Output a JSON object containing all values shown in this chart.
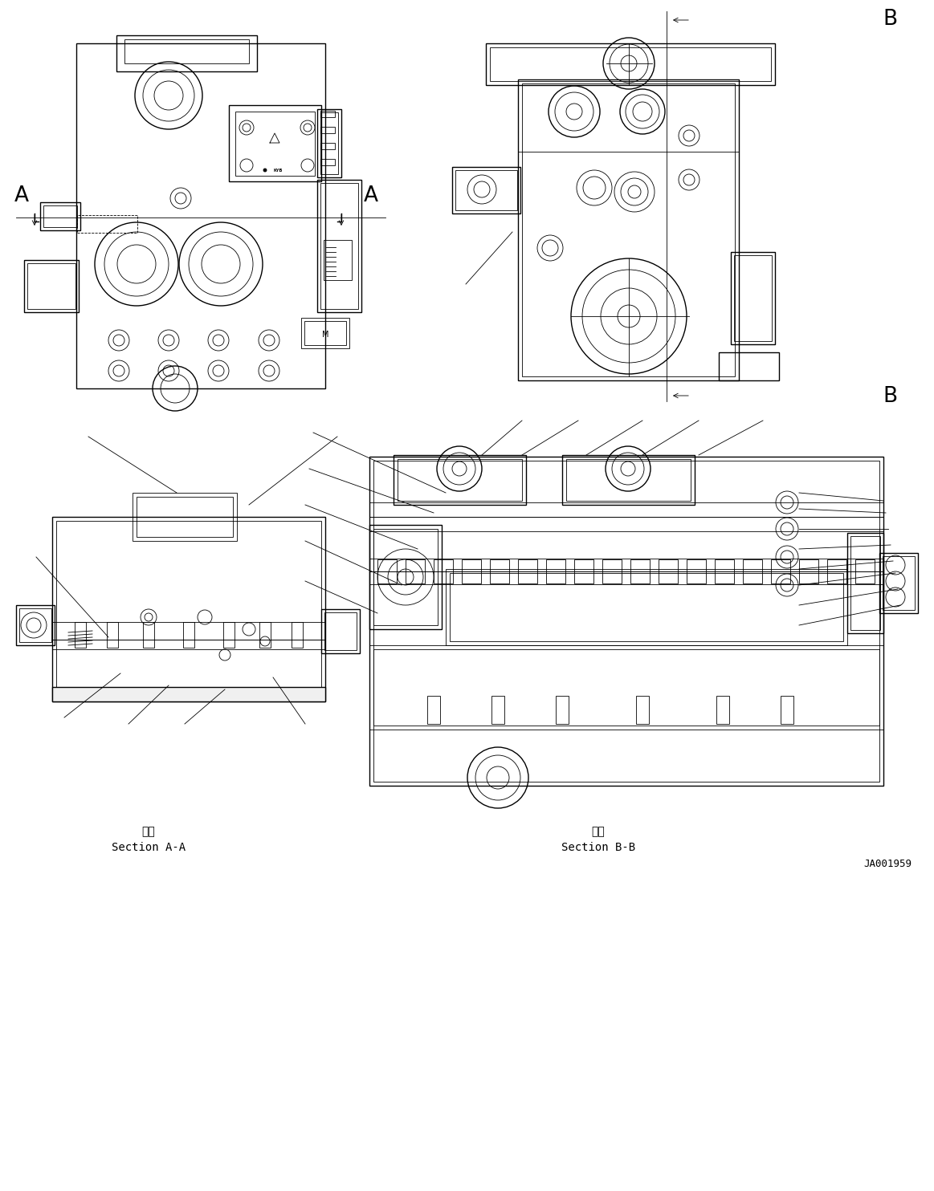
{
  "bg_color": "#ffffff",
  "line_color": "#000000",
  "figure_width": 11.63,
  "figure_height": 14.84,
  "dpi": 100,
  "section_aa_kanji": "断面",
  "section_aa_text": "Section A-A",
  "section_bb_kanji": "断面",
  "section_bb_text": "Section B-B",
  "drawing_number": "JA001959"
}
